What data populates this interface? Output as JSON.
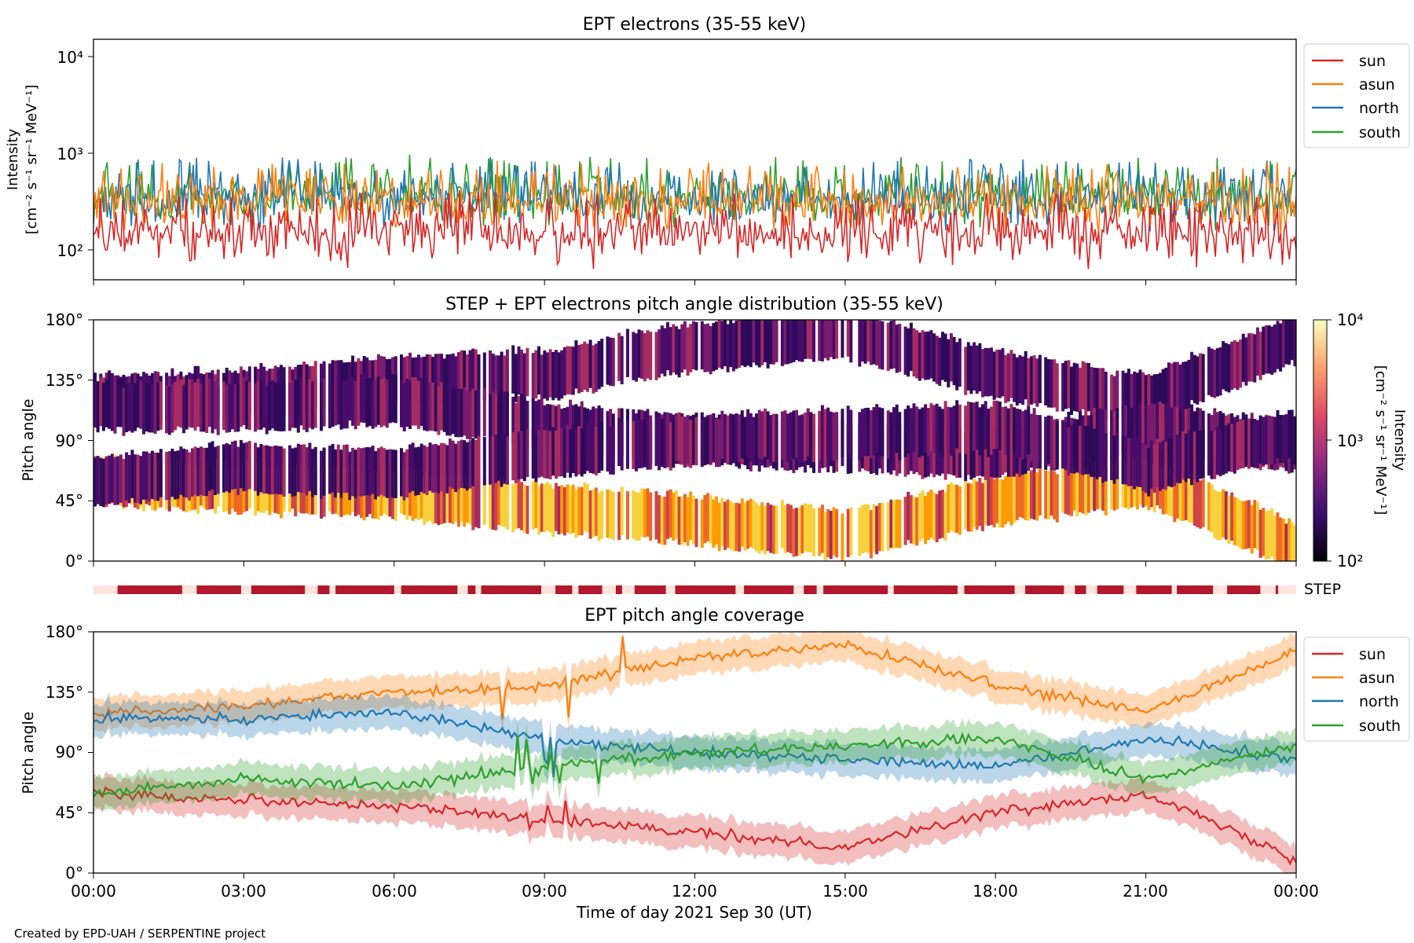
{
  "colors": {
    "sun": "#d62728",
    "asun": "#ff7f0e",
    "north": "#1f77b4",
    "south": "#2ca02c",
    "step_bar": "#b2182b",
    "step_gap": "#fde5dd"
  },
  "panel1": {
    "title": "EPT electrons (35-55 keV)",
    "ylabel_line1": "Intensity",
    "ylabel_line2": "[cm⁻² s⁻¹ sr⁻¹ MeV⁻¹]",
    "yticks": [
      "10⁴",
      "10³",
      "10²"
    ],
    "legend": [
      "sun",
      "asun",
      "north",
      "south"
    ]
  },
  "panel2": {
    "title": "STEP + EPT electrons pitch angle distribution (35-55 keV)",
    "ylabel": "Pitch angle",
    "yticks": [
      "180°",
      "135°",
      "90°",
      "45°",
      "0°"
    ],
    "colorbar_label_line1": "Intensity",
    "colorbar_label_line2": "[cm⁻² s⁻¹ sr⁻¹ MeV⁻¹]",
    "colorbar_ticks": [
      "10⁴",
      "10³",
      "10²"
    ]
  },
  "step_label": "STEP",
  "panel3": {
    "title": "EPT pitch angle coverage",
    "ylabel": "Pitch angle",
    "yticks": [
      "180°",
      "135°",
      "90°",
      "45°",
      "0°"
    ],
    "legend": [
      "sun",
      "asun",
      "north",
      "south"
    ]
  },
  "xticks": [
    "00:00",
    "03:00",
    "06:00",
    "09:00",
    "12:00",
    "15:00",
    "18:00",
    "21:00",
    "00:00"
  ],
  "xlabel": "Time of day 2021 Sep 30 (UT)",
  "footer": "Created by EPD-UAH / SERPENTINE project",
  "chart_data": [
    {
      "type": "line",
      "title": "EPT electrons (35-55 keV)",
      "xlabel": "",
      "ylabel": "Intensity [cm⁻² s⁻¹ sr⁻¹ MeV⁻¹]",
      "yscale": "log",
      "ylim": [
        50,
        15000
      ],
      "x": [
        "00:00",
        "03:00",
        "06:00",
        "09:00",
        "12:00",
        "15:00",
        "18:00",
        "21:00",
        "00:00"
      ],
      "series": [
        {
          "name": "sun",
          "values": [
            150,
            140,
            160,
            150,
            150,
            140,
            150,
            140,
            150
          ]
        },
        {
          "name": "asun",
          "values": [
            300,
            320,
            330,
            310,
            300,
            290,
            300,
            310,
            300
          ]
        },
        {
          "name": "north",
          "values": [
            320,
            350,
            360,
            340,
            330,
            320,
            330,
            340,
            330
          ]
        },
        {
          "name": "south",
          "values": [
            330,
            360,
            380,
            360,
            350,
            340,
            350,
            360,
            350
          ]
        }
      ],
      "legend": "upper-right-outside"
    },
    {
      "type": "heatmap",
      "title": "STEP + EPT electrons pitch angle distribution (35-55 keV)",
      "ylabel": "Pitch angle",
      "ylim": [
        0,
        180
      ],
      "colorbar": {
        "label": "Intensity [cm⁻² s⁻¹ sr⁻¹ MeV⁻¹]",
        "scale": "log",
        "range": [
          100,
          10000
        ]
      }
    },
    {
      "type": "area",
      "title": "EPT pitch angle coverage",
      "xlabel": "Time of day 2021 Sep 30 (UT)",
      "ylabel": "Pitch angle",
      "ylim": [
        0,
        180
      ],
      "x": [
        "00:00",
        "03:00",
        "06:00",
        "09:00",
        "12:00",
        "15:00",
        "18:00",
        "21:00",
        "00:00"
      ],
      "series": [
        {
          "name": "sun",
          "values": [
            60,
            55,
            50,
            40,
            30,
            20,
            45,
            60,
            10
          ]
        },
        {
          "name": "asun",
          "values": [
            120,
            125,
            135,
            140,
            160,
            170,
            140,
            120,
            165
          ]
        },
        {
          "name": "north",
          "values": [
            115,
            115,
            120,
            100,
            90,
            85,
            80,
            100,
            85
          ]
        },
        {
          "name": "south",
          "values": [
            60,
            70,
            65,
            80,
            90,
            95,
            100,
            70,
            95
          ]
        }
      ],
      "band_halfwidth_deg": 12,
      "legend": "upper-right-outside"
    }
  ]
}
